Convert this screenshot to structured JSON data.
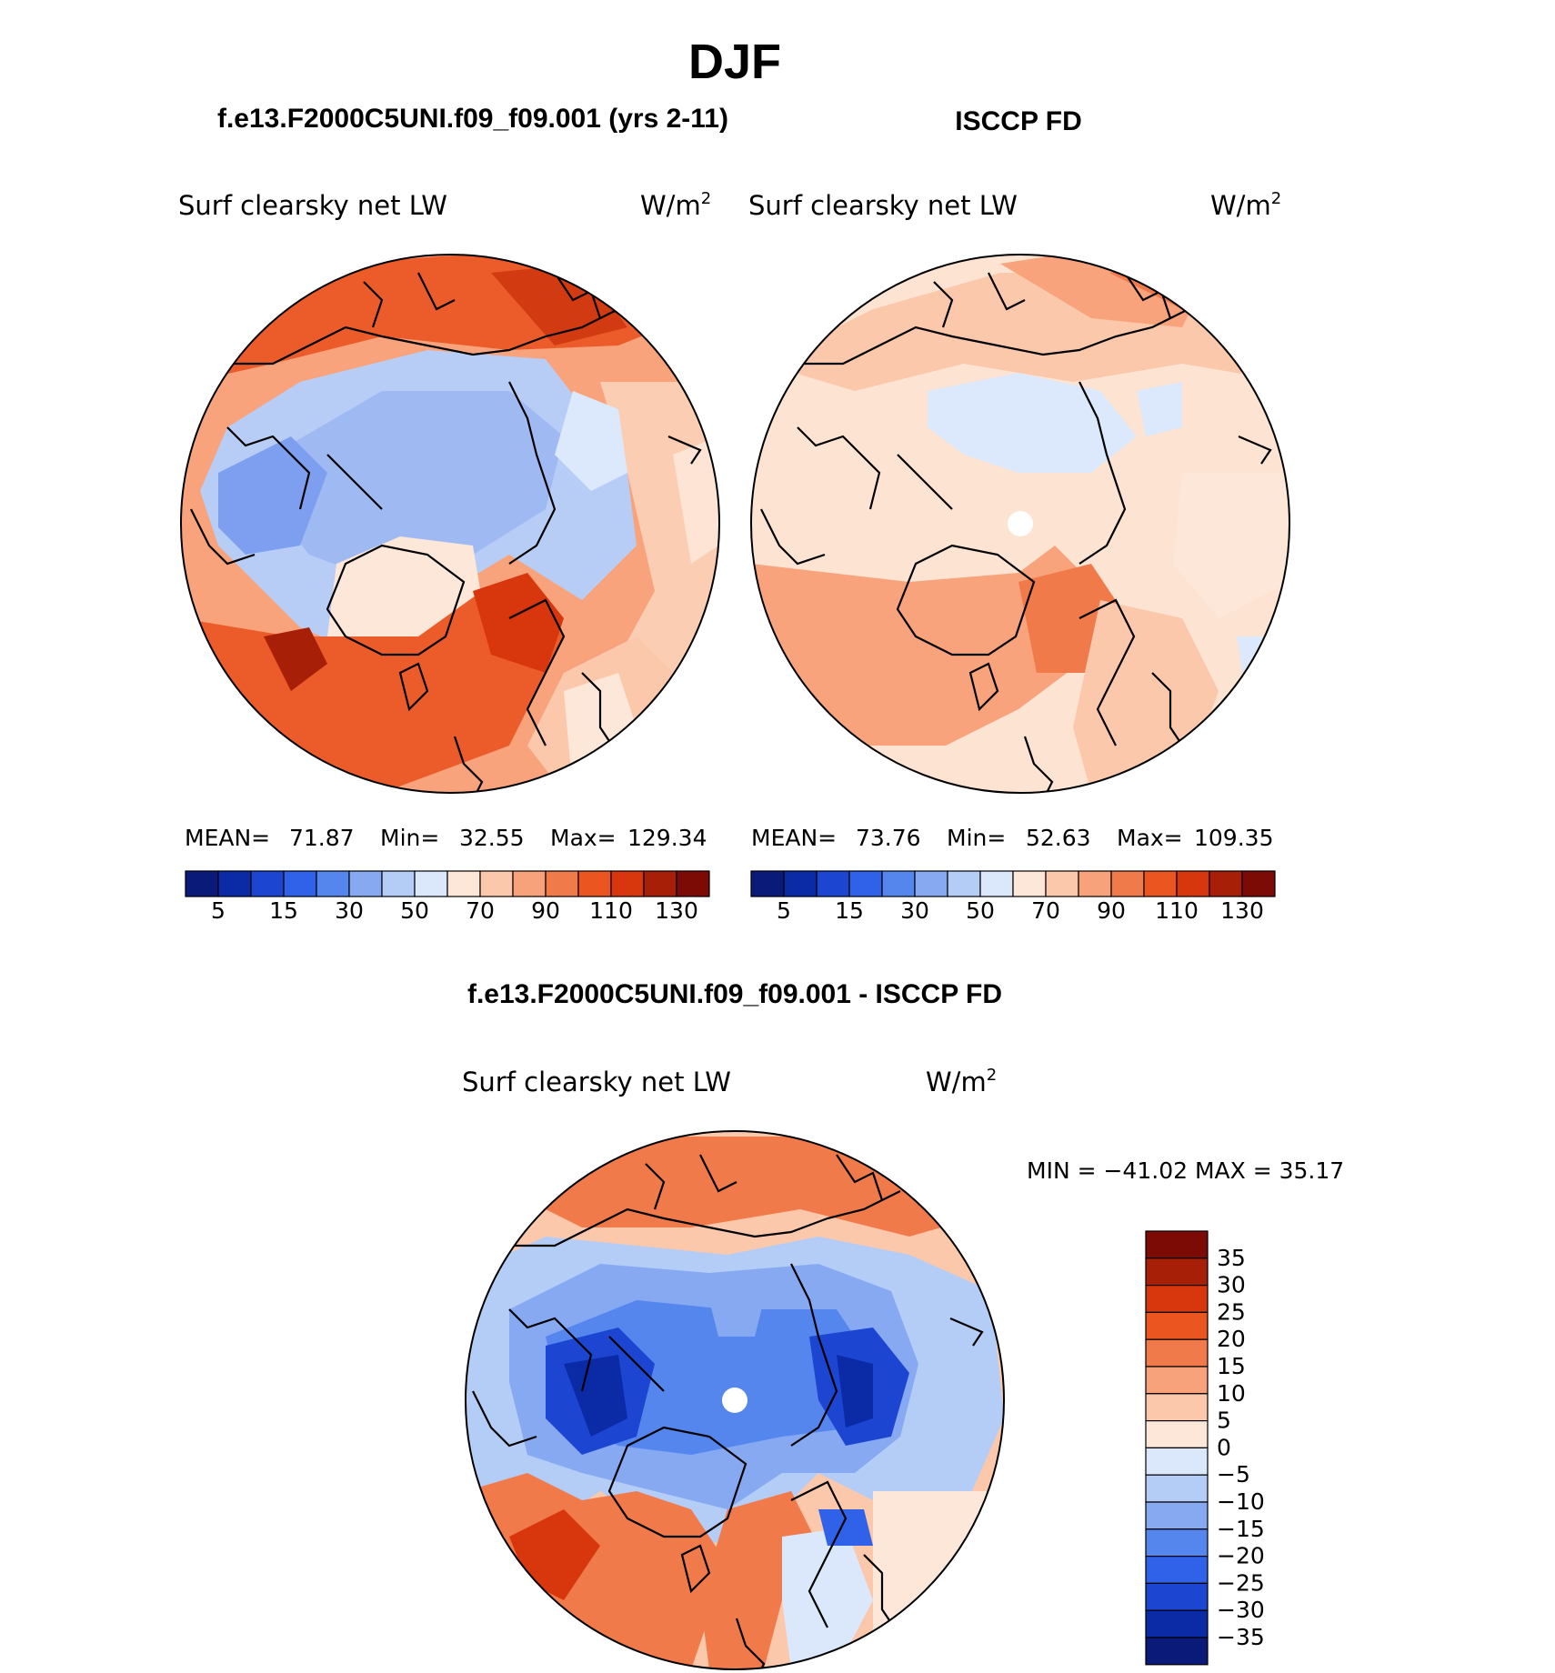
{
  "main_title": "DJF",
  "panel_left": {
    "case_title": "f.e13.F2000C5UNI.f09_f09.001 (yrs 2-11)",
    "variable": "Surf clearsky net LW",
    "units": "W/m",
    "units_exp": "2",
    "stats": {
      "mean_label": "MEAN=",
      "mean": "71.87",
      "min_label": "Min=",
      "min": "32.55",
      "max_label": "Max=",
      "max": "129.34"
    }
  },
  "panel_right": {
    "case_title": "ISCCP FD",
    "variable": "Surf clearsky net LW",
    "units": "W/m",
    "units_exp": "2",
    "stats": {
      "mean_label": "MEAN=",
      "mean": "73.76",
      "min_label": "Min=",
      "min": "52.63",
      "max_label": "Max=",
      "max": "109.35"
    }
  },
  "panel_diff": {
    "case_title": "f.e13.F2000C5UNI.f09_f09.001 - ISCCP FD",
    "variable": "Surf clearsky net LW",
    "units": "W/m",
    "units_exp": "2",
    "minmax_text": "MIN = −41.02 MAX =   35.17"
  },
  "colorbar_abs": {
    "tick_labels": [
      "5",
      "15",
      "30",
      "50",
      "70",
      "90",
      "110",
      "130"
    ],
    "colors": [
      "#0a1a78",
      "#0b2aa6",
      "#1c46d2",
      "#2f62e8",
      "#5586ee",
      "#86a9f2",
      "#b4cdf7",
      "#dbe8fb",
      "#fde7d8",
      "#fbc8ac",
      "#f7a27a",
      "#f17a4b",
      "#ea5520",
      "#d8360c",
      "#a81f08",
      "#7b0b04"
    ]
  },
  "colorbar_diff": {
    "levels": [
      "35",
      "30",
      "25",
      "20",
      "15",
      "10",
      "5",
      "0",
      "−5",
      "−10",
      "−15",
      "−20",
      "−25",
      "−30",
      "−35"
    ],
    "colors": [
      "#7b0b04",
      "#a81f08",
      "#d8360c",
      "#ea5520",
      "#f17a4b",
      "#f7a27a",
      "#fbc8ac",
      "#fde7d8",
      "#dbe8fb",
      "#b4cdf7",
      "#86a9f2",
      "#5586ee",
      "#2f62e8",
      "#1c46d2",
      "#0b2aa6",
      "#0a1a78"
    ]
  }
}
